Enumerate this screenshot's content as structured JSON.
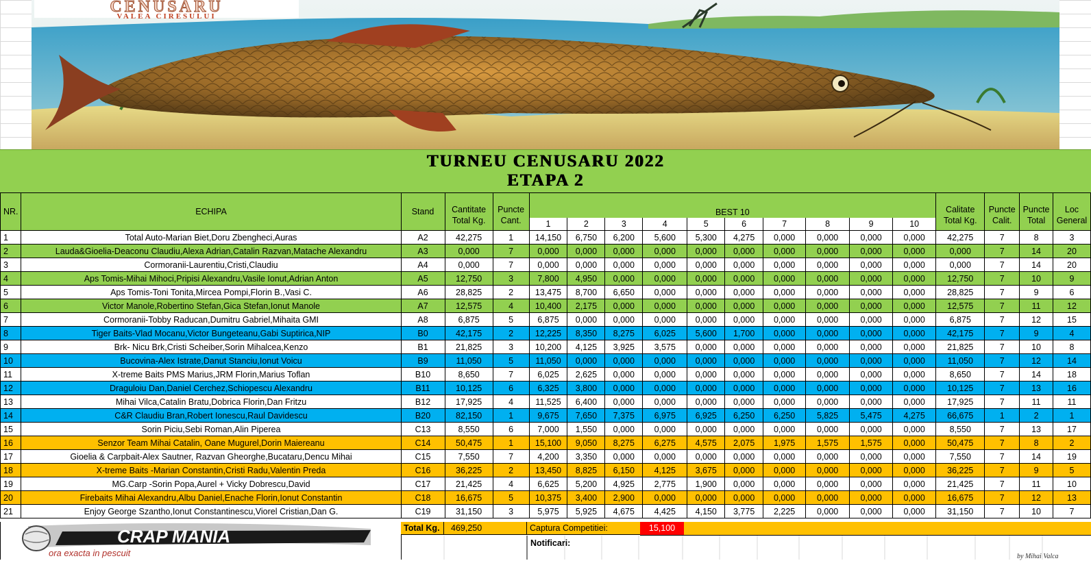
{
  "banner": {
    "brand": "CENUSARU",
    "subtitle": "VALEA CIRESULUI"
  },
  "title": {
    "line1": "TURNEU CENUSARU 2022",
    "line2": "ETAPA 2"
  },
  "headers": {
    "nr": "NR.",
    "echipa": "ECHIPA",
    "stand": "Stand",
    "cantitate_1": "Cantitate",
    "cantitate_2": "Total Kg.",
    "puncte_cant_1": "Puncte",
    "puncte_cant_2": "Cant.",
    "best": "BEST 10",
    "best_cols": [
      "1",
      "2",
      "3",
      "4",
      "5",
      "6",
      "7",
      "8",
      "9",
      "10"
    ],
    "calitate_1": "Calitate",
    "calitate_2": "Total Kg.",
    "puncte_calit_1": "Puncte",
    "puncte_calit_2": "Calit.",
    "puncte_total_1": "Puncte",
    "puncte_total_2": "Total",
    "loc_1": "Loc",
    "loc_2": "General"
  },
  "rows": [
    {
      "nr": "1",
      "team": "Total Auto-Marian Biet,Doru Zbengheci,Auras",
      "stand": "A2",
      "cant": "42,275",
      "pc": "1",
      "best": [
        "14,150",
        "6,750",
        "6,200",
        "5,600",
        "5,300",
        "4,275",
        "0,000",
        "0,000",
        "0,000",
        "0,000"
      ],
      "calit": "42,275",
      "pcal": "7",
      "ptot": "8",
      "loc": "3",
      "color": "white"
    },
    {
      "nr": "2",
      "team": "Lauda&Gioelia-Deaconu Claudiu,Alexa Adrian,Catalin Razvan,Matache Alexandru",
      "stand": "A3",
      "cant": "0,000",
      "pc": "7",
      "best": [
        "0,000",
        "0,000",
        "0,000",
        "0,000",
        "0,000",
        "0,000",
        "0,000",
        "0,000",
        "0,000",
        "0,000"
      ],
      "calit": "0,000",
      "pcal": "7",
      "ptot": "14",
      "loc": "20",
      "color": "green"
    },
    {
      "nr": "3",
      "team": "Cormoranii-Laurentiu,Cristi,Claudiu",
      "stand": "A4",
      "cant": "0,000",
      "pc": "7",
      "best": [
        "0,000",
        "0,000",
        "0,000",
        "0,000",
        "0,000",
        "0,000",
        "0,000",
        "0,000",
        "0,000",
        "0,000"
      ],
      "calit": "0,000",
      "pcal": "7",
      "ptot": "14",
      "loc": "20",
      "color": "white"
    },
    {
      "nr": "4",
      "team": "Aps Tomis-Mihai Mihoci,Pripisi Alexandru,Vasile Ionut,Adrian Anton",
      "stand": "A5",
      "cant": "12,750",
      "pc": "3",
      "best": [
        "7,800",
        "4,950",
        "0,000",
        "0,000",
        "0,000",
        "0,000",
        "0,000",
        "0,000",
        "0,000",
        "0,000"
      ],
      "calit": "12,750",
      "pcal": "7",
      "ptot": "10",
      "loc": "9",
      "color": "green"
    },
    {
      "nr": "5",
      "team": "Aps Tomis-Toni Tonita,Mircea Pompi,Florin B.,Vasi C.",
      "stand": "A6",
      "cant": "28,825",
      "pc": "2",
      "best": [
        "13,475",
        "8,700",
        "6,650",
        "0,000",
        "0,000",
        "0,000",
        "0,000",
        "0,000",
        "0,000",
        "0,000"
      ],
      "calit": "28,825",
      "pcal": "7",
      "ptot": "9",
      "loc": "6",
      "color": "white"
    },
    {
      "nr": "6",
      "team": "Victor Manole,Robertino Stefan,Gica Stefan,Ionut Manole",
      "stand": "A7",
      "cant": "12,575",
      "pc": "4",
      "best": [
        "10,400",
        "2,175",
        "0,000",
        "0,000",
        "0,000",
        "0,000",
        "0,000",
        "0,000",
        "0,000",
        "0,000"
      ],
      "calit": "12,575",
      "pcal": "7",
      "ptot": "11",
      "loc": "12",
      "color": "green"
    },
    {
      "nr": "7",
      "team": "Cormoranii-Tobby Raducan,Dumitru Gabriel,Mihaita GMI",
      "stand": "A8",
      "cant": "6,875",
      "pc": "5",
      "best": [
        "6,875",
        "0,000",
        "0,000",
        "0,000",
        "0,000",
        "0,000",
        "0,000",
        "0,000",
        "0,000",
        "0,000"
      ],
      "calit": "6,875",
      "pcal": "7",
      "ptot": "12",
      "loc": "15",
      "color": "white"
    },
    {
      "nr": "8",
      "team": "Tiger Baits-Vlad Mocanu,Victor Bungeteanu,Gabi Suptirica,NIP",
      "stand": "B0",
      "cant": "42,175",
      "pc": "2",
      "best": [
        "12,225",
        "8,350",
        "8,275",
        "6,025",
        "5,600",
        "1,700",
        "0,000",
        "0,000",
        "0,000",
        "0,000"
      ],
      "calit": "42,175",
      "pcal": "7",
      "ptot": "9",
      "loc": "4",
      "color": "blue"
    },
    {
      "nr": "9",
      "team": "Brk- Nicu Brk,Cristi Scheiber,Sorin Mihalcea,Kenzo",
      "stand": "B1",
      "cant": "21,825",
      "pc": "3",
      "best": [
        "10,200",
        "4,125",
        "3,925",
        "3,575",
        "0,000",
        "0,000",
        "0,000",
        "0,000",
        "0,000",
        "0,000"
      ],
      "calit": "21,825",
      "pcal": "7",
      "ptot": "10",
      "loc": "8",
      "color": "white"
    },
    {
      "nr": "10",
      "team": "Bucovina-Alex Istrate,Danut Stanciu,Ionut Voicu",
      "stand": "B9",
      "cant": "11,050",
      "pc": "5",
      "best": [
        "11,050",
        "0,000",
        "0,000",
        "0,000",
        "0,000",
        "0,000",
        "0,000",
        "0,000",
        "0,000",
        "0,000"
      ],
      "calit": "11,050",
      "pcal": "7",
      "ptot": "12",
      "loc": "14",
      "color": "blue"
    },
    {
      "nr": "11",
      "team": "X-treme Baits PMS Marius,JRM Florin,Marius Toflan",
      "stand": "B10",
      "cant": "8,650",
      "pc": "7",
      "best": [
        "6,025",
        "2,625",
        "0,000",
        "0,000",
        "0,000",
        "0,000",
        "0,000",
        "0,000",
        "0,000",
        "0,000"
      ],
      "calit": "8,650",
      "pcal": "7",
      "ptot": "14",
      "loc": "18",
      "color": "white"
    },
    {
      "nr": "12",
      "team": "Draguloiu Dan,Daniel Cerchez,Schiopescu Alexandru",
      "stand": "B11",
      "cant": "10,125",
      "pc": "6",
      "best": [
        "6,325",
        "3,800",
        "0,000",
        "0,000",
        "0,000",
        "0,000",
        "0,000",
        "0,000",
        "0,000",
        "0,000"
      ],
      "calit": "10,125",
      "pcal": "7",
      "ptot": "13",
      "loc": "16",
      "color": "blue"
    },
    {
      "nr": "13",
      "team": "Mihai Vilca,Catalin Bratu,Dobrica Florin,Dan Fritzu",
      "stand": "B12",
      "cant": "17,925",
      "pc": "4",
      "best": [
        "11,525",
        "6,400",
        "0,000",
        "0,000",
        "0,000",
        "0,000",
        "0,000",
        "0,000",
        "0,000",
        "0,000"
      ],
      "calit": "17,925",
      "pcal": "7",
      "ptot": "11",
      "loc": "11",
      "color": "white"
    },
    {
      "nr": "14",
      "team": "C&R Claudiu Bran,Robert Ionescu,Raul Davidescu",
      "stand": "B20",
      "cant": "82,150",
      "pc": "1",
      "best": [
        "9,675",
        "7,650",
        "7,375",
        "6,975",
        "6,925",
        "6,250",
        "6,250",
        "5,825",
        "5,475",
        "4,275"
      ],
      "calit": "66,675",
      "pcal": "1",
      "ptot": "2",
      "loc": "1",
      "color": "blue"
    },
    {
      "nr": "15",
      "team": "Sorin Piciu,Sebi Roman,Alin Piperea",
      "stand": "C13",
      "cant": "8,550",
      "pc": "6",
      "best": [
        "7,000",
        "1,550",
        "0,000",
        "0,000",
        "0,000",
        "0,000",
        "0,000",
        "0,000",
        "0,000",
        "0,000"
      ],
      "calit": "8,550",
      "pcal": "7",
      "ptot": "13",
      "loc": "17",
      "color": "white"
    },
    {
      "nr": "16",
      "team": "Senzor Team Mihai Catalin, Oane Mugurel,Dorin Maiereanu",
      "stand": "C14",
      "cant": "50,475",
      "pc": "1",
      "best": [
        "15,100",
        "9,050",
        "8,275",
        "6,275",
        "4,575",
        "2,075",
        "1,975",
        "1,575",
        "1,575",
        "0,000"
      ],
      "calit": "50,475",
      "pcal": "7",
      "ptot": "8",
      "loc": "2",
      "color": "orange"
    },
    {
      "nr": "17",
      "team": "Gioelia & Carpbait-Alex Sautner, Razvan Gheorghe,Bucataru,Dencu Mihai",
      "stand": "C15",
      "cant": "7,550",
      "pc": "7",
      "best": [
        "4,200",
        "3,350",
        "0,000",
        "0,000",
        "0,000",
        "0,000",
        "0,000",
        "0,000",
        "0,000",
        "0,000"
      ],
      "calit": "7,550",
      "pcal": "7",
      "ptot": "14",
      "loc": "19",
      "color": "white"
    },
    {
      "nr": "18",
      "team": "X-treme Baits -Marian Constantin,Cristi Radu,Valentin Preda",
      "stand": "C16",
      "cant": "36,225",
      "pc": "2",
      "best": [
        "13,450",
        "8,825",
        "6,150",
        "4,125",
        "3,675",
        "0,000",
        "0,000",
        "0,000",
        "0,000",
        "0,000"
      ],
      "calit": "36,225",
      "pcal": "7",
      "ptot": "9",
      "loc": "5",
      "color": "orange"
    },
    {
      "nr": "19",
      "team": "MG.Carp -Sorin Popa,Aurel + Vicky Dobrescu,David",
      "stand": "C17",
      "cant": "21,425",
      "pc": "4",
      "best": [
        "6,625",
        "5,200",
        "4,925",
        "2,775",
        "1,900",
        "0,000",
        "0,000",
        "0,000",
        "0,000",
        "0,000"
      ],
      "calit": "21,425",
      "pcal": "7",
      "ptot": "11",
      "loc": "10",
      "color": "white"
    },
    {
      "nr": "20",
      "team": "Firebaits Mihai Alexandru,Albu Daniel,Enache Florin,Ionut Constantin",
      "stand": "C18",
      "cant": "16,675",
      "pc": "5",
      "best": [
        "10,375",
        "3,400",
        "2,900",
        "0,000",
        "0,000",
        "0,000",
        "0,000",
        "0,000",
        "0,000",
        "0,000"
      ],
      "calit": "16,675",
      "pcal": "7",
      "ptot": "12",
      "loc": "13",
      "color": "orange"
    },
    {
      "nr": "21",
      "team": "Enjoy George Szantho,Ionut Constantinescu,Viorel Cristian,Dan G.",
      "stand": "C19",
      "cant": "31,150",
      "pc": "3",
      "best": [
        "5,975",
        "5,925",
        "4,675",
        "4,425",
        "4,150",
        "3,775",
        "2,225",
        "0,000",
        "0,000",
        "0,000"
      ],
      "calit": "31,150",
      "pcal": "7",
      "ptot": "10",
      "loc": "7",
      "color": "white"
    }
  ],
  "footer": {
    "logo_main": "CRAP MANIA",
    "logo_tagline": "ora exacta in pescuit",
    "total_label": "Total Kg.",
    "total_value": "469,250",
    "captura_label": "Captura Competitiei:",
    "captura_value": "15,100",
    "notif_label": "Notificari:",
    "signature": "by Mihai Valca"
  },
  "colors": {
    "green": "#92d050",
    "blue": "#00b0f0",
    "orange": "#ffc000",
    "red": "#ff0000"
  }
}
